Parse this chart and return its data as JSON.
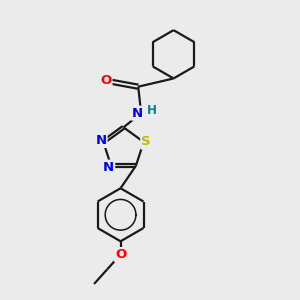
{
  "background_color": "#ebebeb",
  "bond_color": "#1a1a1a",
  "bond_width": 1.6,
  "atom_colors": {
    "O": "#ff0000",
    "N": "#0000ee",
    "S": "#bbbb00",
    "H": "#008888",
    "C": "#1a1a1a"
  },
  "font_size": 9.5,
  "fig_size": [
    3.0,
    3.0
  ],
  "dpi": 100,
  "xlim": [
    0,
    10
  ],
  "ylim": [
    0,
    10
  ]
}
